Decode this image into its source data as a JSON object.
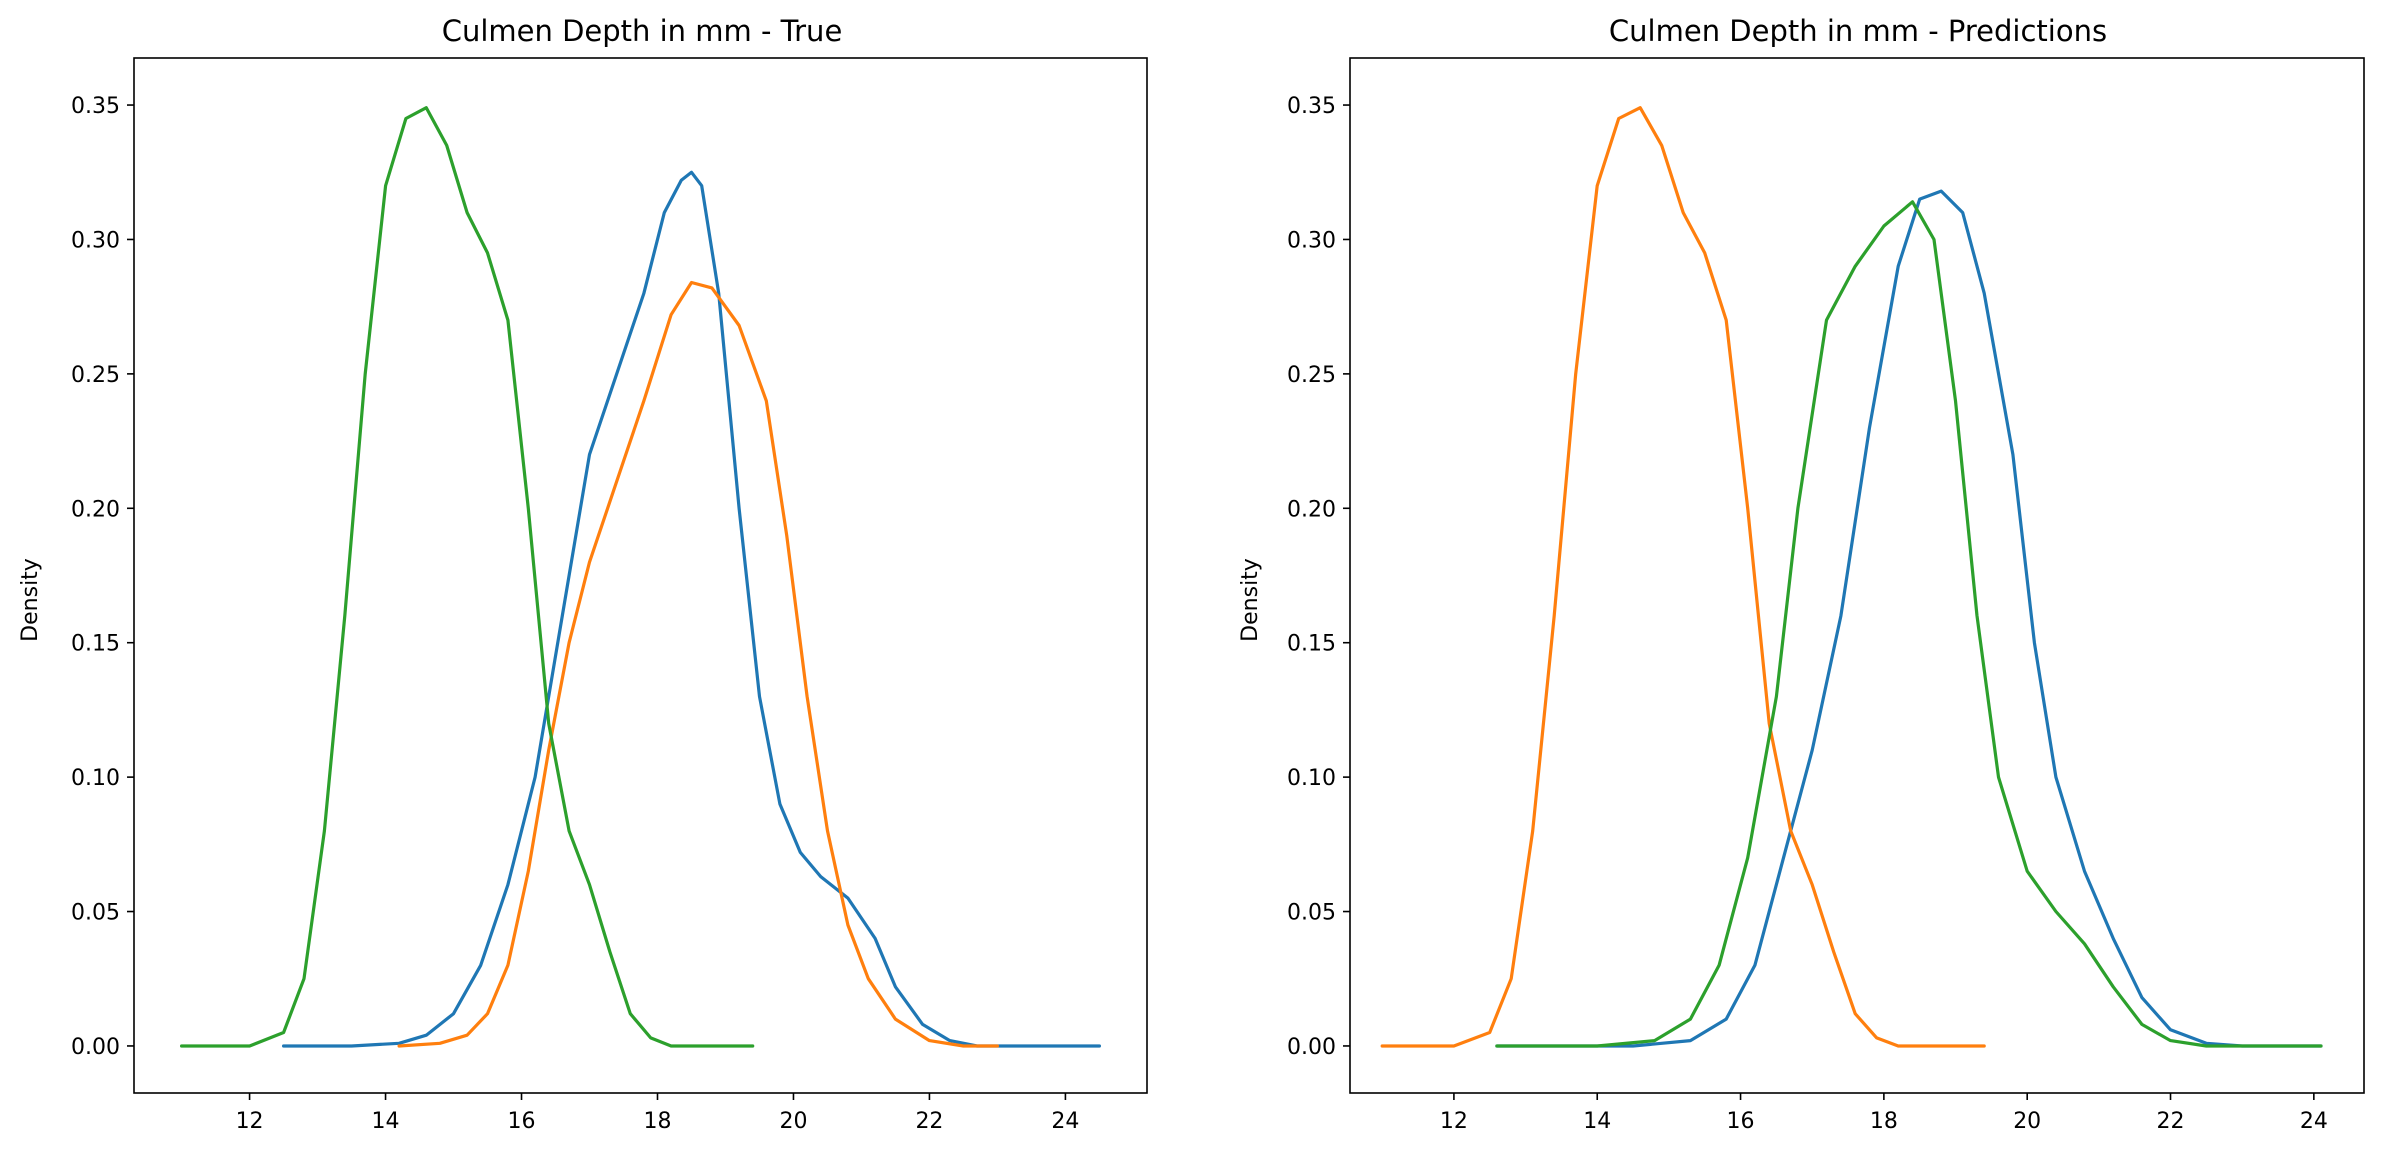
{
  "chart_data": [
    {
      "type": "line",
      "title": "Culmen Depth in mm - True",
      "xlabel": "",
      "ylabel": "Density",
      "xlim": [
        10.3,
        25.2
      ],
      "ylim": [
        -0.0175,
        0.3675
      ],
      "xticks": [
        12,
        14,
        16,
        18,
        20,
        22,
        24
      ],
      "yticks": [
        0.0,
        0.05,
        0.1,
        0.15,
        0.2,
        0.25,
        0.3,
        0.35
      ],
      "ytick_labels": [
        "0.00",
        "0.05",
        "0.10",
        "0.15",
        "0.20",
        "0.25",
        "0.30",
        "0.35"
      ],
      "grid": false,
      "legend": "none",
      "series": [
        {
          "color": "#1f77b4",
          "x": [
            12.5,
            13.5,
            14.2,
            14.6,
            15.0,
            15.4,
            15.8,
            16.2,
            16.6,
            17.0,
            17.4,
            17.8,
            18.1,
            18.35,
            18.5,
            18.65,
            18.9,
            19.2,
            19.5,
            19.8,
            20.1,
            20.4,
            20.8,
            21.2,
            21.5,
            21.9,
            22.3,
            22.7,
            23.2,
            24.5
          ],
          "y": [
            0.0,
            0.0,
            0.001,
            0.004,
            0.012,
            0.03,
            0.06,
            0.1,
            0.16,
            0.22,
            0.25,
            0.28,
            0.31,
            0.322,
            0.325,
            0.32,
            0.28,
            0.2,
            0.13,
            0.09,
            0.072,
            0.063,
            0.055,
            0.04,
            0.022,
            0.008,
            0.002,
            0.0,
            0.0,
            0.0
          ]
        },
        {
          "color": "#ff7f0e",
          "x": [
            14.2,
            14.8,
            15.2,
            15.5,
            15.8,
            16.1,
            16.4,
            16.7,
            17.0,
            17.4,
            17.8,
            18.2,
            18.5,
            18.8,
            19.2,
            19.6,
            19.9,
            20.2,
            20.5,
            20.8,
            21.1,
            21.5,
            22.0,
            22.5,
            23.0
          ],
          "y": [
            0.0,
            0.001,
            0.004,
            0.012,
            0.03,
            0.065,
            0.11,
            0.15,
            0.18,
            0.21,
            0.24,
            0.272,
            0.284,
            0.282,
            0.268,
            0.24,
            0.19,
            0.13,
            0.08,
            0.045,
            0.025,
            0.01,
            0.002,
            0.0,
            0.0
          ]
        },
        {
          "color": "#2ca02c",
          "x": [
            11.0,
            12.0,
            12.5,
            12.8,
            13.1,
            13.4,
            13.7,
            14.0,
            14.3,
            14.6,
            14.9,
            15.2,
            15.5,
            15.8,
            16.1,
            16.4,
            16.7,
            17.0,
            17.3,
            17.6,
            17.9,
            18.2,
            18.6,
            19.4
          ],
          "y": [
            0.0,
            0.0,
            0.005,
            0.025,
            0.08,
            0.16,
            0.25,
            0.32,
            0.345,
            0.349,
            0.335,
            0.31,
            0.295,
            0.27,
            0.2,
            0.12,
            0.08,
            0.06,
            0.035,
            0.012,
            0.003,
            0.0,
            0.0,
            0.0
          ]
        }
      ]
    },
    {
      "type": "line",
      "title": "Culmen Depth in mm - Predictions",
      "xlabel": "",
      "ylabel": "Density",
      "xlim": [
        10.55,
        24.7
      ],
      "ylim": [
        -0.0175,
        0.3675
      ],
      "xticks": [
        12,
        14,
        16,
        18,
        20,
        22,
        24
      ],
      "yticks": [
        0.0,
        0.05,
        0.1,
        0.15,
        0.2,
        0.25,
        0.3,
        0.35
      ],
      "ytick_labels": [
        "0.00",
        "0.05",
        "0.10",
        "0.15",
        "0.20",
        "0.25",
        "0.30",
        "0.35"
      ],
      "grid": false,
      "legend": "none",
      "series": [
        {
          "color": "#1f77b4",
          "x": [
            12.6,
            14.5,
            15.3,
            15.8,
            16.2,
            16.6,
            17.0,
            17.4,
            17.8,
            18.2,
            18.5,
            18.8,
            19.1,
            19.4,
            19.8,
            20.1,
            20.4,
            20.8,
            21.2,
            21.6,
            22.0,
            22.5,
            23.0,
            24.1
          ],
          "y": [
            0.0,
            0.0,
            0.002,
            0.01,
            0.03,
            0.07,
            0.11,
            0.16,
            0.23,
            0.29,
            0.315,
            0.318,
            0.31,
            0.28,
            0.22,
            0.15,
            0.1,
            0.065,
            0.04,
            0.018,
            0.006,
            0.001,
            0.0,
            0.0
          ]
        },
        {
          "color": "#ff7f0e",
          "x": [
            11.0,
            12.0,
            12.5,
            12.8,
            13.1,
            13.4,
            13.7,
            14.0,
            14.3,
            14.6,
            14.9,
            15.2,
            15.5,
            15.8,
            16.1,
            16.4,
            16.7,
            17.0,
            17.3,
            17.6,
            17.9,
            18.2,
            18.6,
            19.4
          ],
          "y": [
            0.0,
            0.0,
            0.005,
            0.025,
            0.08,
            0.16,
            0.25,
            0.32,
            0.345,
            0.349,
            0.335,
            0.31,
            0.295,
            0.27,
            0.2,
            0.12,
            0.08,
            0.06,
            0.035,
            0.012,
            0.003,
            0.0,
            0.0,
            0.0
          ]
        },
        {
          "color": "#2ca02c",
          "x": [
            12.6,
            14.0,
            14.8,
            15.3,
            15.7,
            16.1,
            16.5,
            16.8,
            17.2,
            17.6,
            18.0,
            18.4,
            18.7,
            19.0,
            19.3,
            19.6,
            20.0,
            20.4,
            20.8,
            21.2,
            21.6,
            22.0,
            22.5,
            23.0,
            24.1
          ],
          "y": [
            0.0,
            0.0,
            0.002,
            0.01,
            0.03,
            0.07,
            0.13,
            0.2,
            0.27,
            0.29,
            0.305,
            0.314,
            0.3,
            0.24,
            0.16,
            0.1,
            0.065,
            0.05,
            0.038,
            0.022,
            0.008,
            0.002,
            0.0,
            0.0,
            0.0
          ]
        }
      ]
    }
  ]
}
